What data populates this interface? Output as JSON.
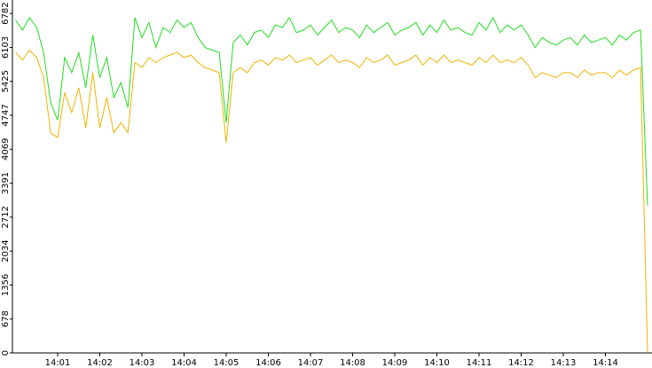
{
  "chart_data": {
    "type": "line",
    "categories": [
      null,
      null,
      null,
      null,
      null,
      null,
      "14:01",
      null,
      null,
      null,
      null,
      null,
      "14:02",
      null,
      null,
      null,
      null,
      null,
      "14:03",
      null,
      null,
      null,
      null,
      null,
      "14:04",
      null,
      null,
      null,
      null,
      null,
      "14:05",
      null,
      null,
      null,
      null,
      null,
      "14:06",
      null,
      null,
      null,
      null,
      null,
      "14:07",
      null,
      null,
      null,
      null,
      null,
      "14:08",
      null,
      null,
      null,
      null,
      null,
      "14:09",
      null,
      null,
      null,
      null,
      null,
      "14:10",
      null,
      null,
      null,
      null,
      null,
      "14:11",
      null,
      null,
      null,
      null,
      null,
      "14:12",
      null,
      null,
      null,
      null,
      null,
      "14:13",
      null,
      null,
      null,
      null,
      null,
      "14:14",
      null,
      null,
      null,
      null,
      null,
      null
    ],
    "series": [
      {
        "color": "#22dd22",
        "values": [
          6650,
          6450,
          6700,
          6500,
          6000,
          5000,
          4650,
          5900,
          5600,
          6000,
          5300,
          6350,
          5500,
          5900,
          5100,
          5400,
          4900,
          6700,
          6300,
          6600,
          6100,
          6500,
          6400,
          6650,
          6500,
          6600,
          6300,
          6100,
          6050,
          6000,
          4600,
          6200,
          6350,
          6150,
          6400,
          6450,
          6300,
          6550,
          6500,
          6700,
          6400,
          6450,
          6550,
          6350,
          6500,
          6650,
          6400,
          6500,
          6450,
          6300,
          6550,
          6400,
          6500,
          6600,
          6350,
          6450,
          6500,
          6600,
          6350,
          6550,
          6400,
          6650,
          6450,
          6500,
          6400,
          6350,
          6600,
          6450,
          6700,
          6400,
          6550,
          6450,
          6550,
          6350,
          6100,
          6300,
          6200,
          6150,
          6250,
          6300,
          6150,
          6350,
          6200,
          6250,
          6300,
          6150,
          6350,
          6250,
          6400,
          6450,
          2950
        ]
      },
      {
        "color": "#f0b400",
        "values": [
          6000,
          5850,
          6050,
          5900,
          5500,
          4400,
          4300,
          5200,
          4800,
          5300,
          4500,
          5600,
          4500,
          5100,
          4400,
          4600,
          4400,
          5800,
          5700,
          5900,
          5800,
          5900,
          5950,
          6000,
          5900,
          5950,
          5800,
          5700,
          5650,
          5600,
          4200,
          5600,
          5700,
          5600,
          5800,
          5850,
          5750,
          5900,
          5850,
          5950,
          5800,
          5850,
          5900,
          5750,
          5850,
          5950,
          5800,
          5850,
          5800,
          5700,
          5900,
          5800,
          5850,
          5950,
          5750,
          5800,
          5850,
          5950,
          5750,
          5900,
          5800,
          5950,
          5800,
          5850,
          5800,
          5750,
          5900,
          5800,
          5950,
          5800,
          5850,
          5800,
          5900,
          5750,
          5500,
          5600,
          5550,
          5500,
          5600,
          5600,
          5500,
          5650,
          5550,
          5600,
          5600,
          5500,
          5650,
          5550,
          5650,
          5700,
          0
        ]
      }
    ],
    "ylim": [
      0,
      7050
    ],
    "yticks": [
      0,
      678,
      1356,
      2034,
      2712,
      3391,
      4069,
      4747,
      5425,
      6103,
      6782
    ],
    "grid": false
  }
}
